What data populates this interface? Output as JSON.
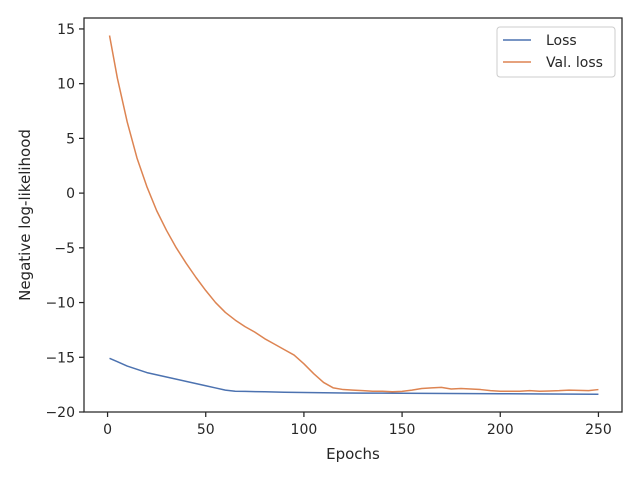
{
  "chart_data": {
    "type": "line",
    "title": "",
    "xlabel": "Epochs",
    "ylabel": "Negative log-likelihood",
    "xlim": [
      -12,
      262
    ],
    "ylim": [
      -20,
      16
    ],
    "xticks": [
      0,
      50,
      100,
      150,
      200,
      250
    ],
    "yticks": [
      -20,
      -15,
      -10,
      -5,
      0,
      5,
      10,
      15
    ],
    "grid": false,
    "legend": "top-right",
    "series": [
      {
        "name": "Loss",
        "color": "#4c72b0",
        "x": [
          1,
          5,
          10,
          15,
          20,
          30,
          40,
          50,
          55,
          60,
          65,
          70,
          80,
          90,
          100,
          110,
          120,
          130,
          140,
          150,
          175,
          200,
          225,
          250
        ],
        "y": [
          -15.1,
          -15.4,
          -15.8,
          -16.1,
          -16.4,
          -16.8,
          -17.2,
          -17.6,
          -17.8,
          -18.0,
          -18.1,
          -18.12,
          -18.15,
          -18.2,
          -18.22,
          -18.24,
          -18.26,
          -18.27,
          -18.28,
          -18.29,
          -18.31,
          -18.33,
          -18.35,
          -18.38
        ]
      },
      {
        "name": "Val. loss",
        "color": "#dd8452",
        "x": [
          1,
          5,
          10,
          15,
          20,
          25,
          30,
          35,
          40,
          45,
          50,
          55,
          60,
          65,
          70,
          75,
          80,
          85,
          90,
          95,
          100,
          105,
          110,
          115,
          120,
          125,
          130,
          135,
          140,
          145,
          150,
          155,
          160,
          165,
          170,
          175,
          180,
          185,
          190,
          195,
          200,
          205,
          210,
          215,
          220,
          225,
          230,
          235,
          240,
          245,
          250
        ],
        "y": [
          14.4,
          10.5,
          6.5,
          3.2,
          0.6,
          -1.6,
          -3.4,
          -5.0,
          -6.4,
          -7.7,
          -8.9,
          -10.0,
          -10.9,
          -11.6,
          -12.2,
          -12.7,
          -13.3,
          -13.8,
          -14.3,
          -14.8,
          -15.6,
          -16.5,
          -17.3,
          -17.8,
          -17.95,
          -18.0,
          -18.05,
          -18.1,
          -18.1,
          -18.15,
          -18.12,
          -18.0,
          -17.85,
          -17.8,
          -17.75,
          -17.9,
          -17.85,
          -17.9,
          -17.95,
          -18.05,
          -18.1,
          -18.1,
          -18.1,
          -18.05,
          -18.1,
          -18.08,
          -18.05,
          -18.0,
          -18.02,
          -18.05,
          -17.95
        ]
      }
    ]
  }
}
